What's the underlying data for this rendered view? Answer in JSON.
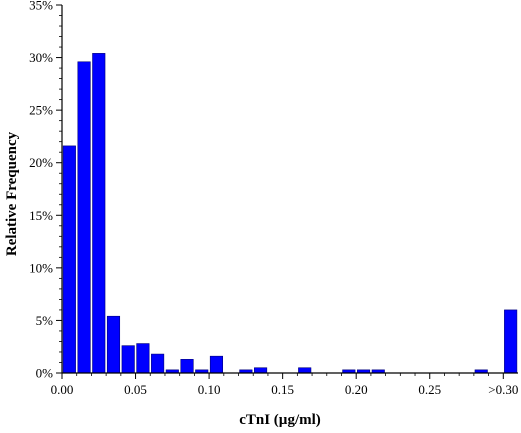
{
  "chart_data": {
    "type": "bar",
    "xlabel": "cTnI (µg/ml)",
    "ylabel": "Relative Frequency",
    "ylim": [
      0,
      35
    ],
    "xlim": [
      0,
      0.31
    ],
    "x_ticks": [
      0,
      0.05,
      0.1,
      0.15,
      0.2,
      0.25,
      0.3
    ],
    "x_tick_labels": [
      "0.00",
      "0.05",
      "0.10",
      "0.15",
      "0.20",
      "0.25",
      ">0.30"
    ],
    "y_ticks": [
      0,
      5,
      10,
      15,
      20,
      25,
      30,
      35
    ],
    "y_tick_labels": [
      "0%",
      "5%",
      "10%",
      "15%",
      "20%",
      "25%",
      "30%",
      "35%"
    ],
    "bar_width": 0.0085,
    "bar_color": "#0000ff",
    "bar_edge_color": "#00007a",
    "x": [
      0.005,
      0.015,
      0.025,
      0.035,
      0.045,
      0.055,
      0.065,
      0.075,
      0.085,
      0.095,
      0.105,
      0.125,
      0.135,
      0.165,
      0.195,
      0.205,
      0.215,
      0.285,
      0.305
    ],
    "values": [
      21.6,
      29.6,
      30.4,
      5.4,
      2.6,
      2.8,
      1.8,
      0.3,
      1.3,
      0.3,
      1.6,
      0.3,
      0.5,
      0.5,
      0.3,
      0.3,
      0.3,
      0.3,
      6.0
    ]
  }
}
